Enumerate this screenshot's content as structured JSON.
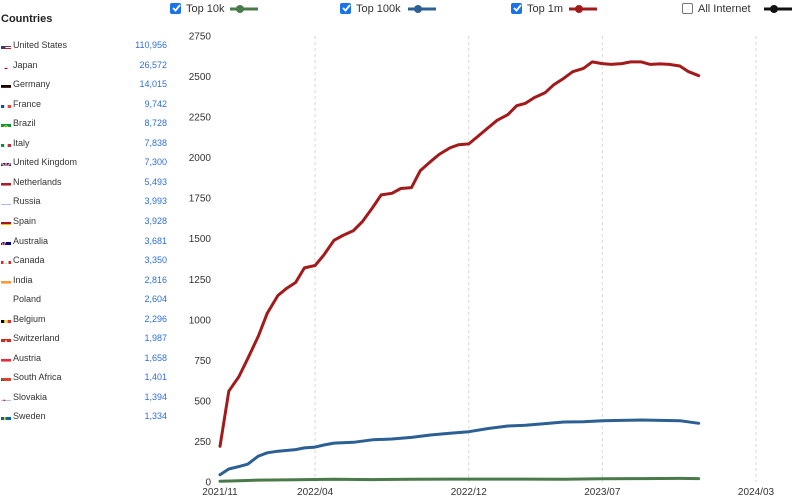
{
  "sidebar": {
    "title": "Countries",
    "countries": [
      {
        "name": "United States",
        "value": "110,956",
        "flag_icon": "us-flag-icon"
      },
      {
        "name": "Japan",
        "value": "26,572",
        "flag_icon": "japan-flag-icon"
      },
      {
        "name": "Germany",
        "value": "14,015",
        "flag_icon": "germany-flag-icon"
      },
      {
        "name": "France",
        "value": "9,742",
        "flag_icon": "france-flag-icon"
      },
      {
        "name": "Brazil",
        "value": "8,728",
        "flag_icon": "brazil-flag-icon"
      },
      {
        "name": "Italy",
        "value": "7,838",
        "flag_icon": "italy-flag-icon"
      },
      {
        "name": "United Kingdom",
        "value": "7,300",
        "flag_icon": "uk-flag-icon"
      },
      {
        "name": "Netherlands",
        "value": "5,493",
        "flag_icon": "netherlands-flag-icon"
      },
      {
        "name": "Russia",
        "value": "3,993",
        "flag_icon": "russia-flag-icon"
      },
      {
        "name": "Spain",
        "value": "3,928",
        "flag_icon": "spain-flag-icon"
      },
      {
        "name": "Australia",
        "value": "3,681",
        "flag_icon": "australia-flag-icon"
      },
      {
        "name": "Canada",
        "value": "3,350",
        "flag_icon": "canada-flag-icon"
      },
      {
        "name": "India",
        "value": "2,816",
        "flag_icon": "india-flag-icon"
      },
      {
        "name": "Poland",
        "value": "2,604",
        "flag_icon": "poland-flag-icon"
      },
      {
        "name": "Belgium",
        "value": "2,296",
        "flag_icon": "belgium-flag-icon"
      },
      {
        "name": "Switzerland",
        "value": "1,987",
        "flag_icon": "switzerland-flag-icon"
      },
      {
        "name": "Austria",
        "value": "1,658",
        "flag_icon": "austria-flag-icon"
      },
      {
        "name": "South Africa",
        "value": "1,401",
        "flag_icon": "south-africa-flag-icon"
      },
      {
        "name": "Slovakia",
        "value": "1,394",
        "flag_icon": "slovakia-flag-icon"
      },
      {
        "name": "Sweden",
        "value": "1,334",
        "flag_icon": "sweden-flag-icon"
      }
    ]
  },
  "legend": [
    {
      "label": "Top 10k",
      "checked": true,
      "color": "#4a7a4a"
    },
    {
      "label": "Top 100k",
      "checked": true,
      "color": "#2c5f94"
    },
    {
      "label": "Top 1m",
      "checked": true,
      "color": "#a31a1a"
    },
    {
      "label": "All Internet",
      "checked": false,
      "color": "#111111"
    }
  ],
  "chart_data": {
    "type": "line",
    "title": "",
    "xlabel": "",
    "ylabel": "",
    "ylim": [
      0,
      2750
    ],
    "yticks": [
      0,
      250,
      500,
      750,
      1000,
      1250,
      1500,
      1750,
      2000,
      2250,
      2500,
      2750
    ],
    "xlim": [
      "2021-11",
      "2024-03"
    ],
    "xticks": [
      "2021/11",
      "2022/04",
      "2022/12",
      "2023/07",
      "2024/03"
    ],
    "grid": "vertical dashed lines at x ticks",
    "series": [
      {
        "name": "Top 1m",
        "color": "#a31a1a",
        "points": [
          [
            "2021-11-01",
            220
          ],
          [
            "2021-11-15",
            560
          ],
          [
            "2021-12-01",
            650
          ],
          [
            "2021-12-15",
            760
          ],
          [
            "2022-01-01",
            900
          ],
          [
            "2022-01-15",
            1040
          ],
          [
            "2022-02-01",
            1150
          ],
          [
            "2022-02-15",
            1195
          ],
          [
            "2022-03-01",
            1230
          ],
          [
            "2022-03-15",
            1320
          ],
          [
            "2022-04-01",
            1335
          ],
          [
            "2022-04-15",
            1400
          ],
          [
            "2022-05-01",
            1490
          ],
          [
            "2022-05-15",
            1520
          ],
          [
            "2022-06-01",
            1550
          ],
          [
            "2022-06-15",
            1605
          ],
          [
            "2022-07-01",
            1690
          ],
          [
            "2022-07-15",
            1770
          ],
          [
            "2022-08-01",
            1780
          ],
          [
            "2022-08-15",
            1810
          ],
          [
            "2022-09-01",
            1815
          ],
          [
            "2022-09-15",
            1920
          ],
          [
            "2022-10-01",
            1975
          ],
          [
            "2022-10-15",
            2020
          ],
          [
            "2022-11-01",
            2060
          ],
          [
            "2022-11-15",
            2080
          ],
          [
            "2022-12-01",
            2085
          ],
          [
            "2022-12-15",
            2130
          ],
          [
            "2023-01-01",
            2185
          ],
          [
            "2023-01-15",
            2230
          ],
          [
            "2023-02-01",
            2265
          ],
          [
            "2023-02-15",
            2320
          ],
          [
            "2023-03-01",
            2335
          ],
          [
            "2023-03-15",
            2370
          ],
          [
            "2023-04-01",
            2400
          ],
          [
            "2023-04-15",
            2450
          ],
          [
            "2023-05-01",
            2490
          ],
          [
            "2023-05-15",
            2530
          ],
          [
            "2023-06-01",
            2550
          ],
          [
            "2023-06-15",
            2590
          ],
          [
            "2023-07-01",
            2580
          ],
          [
            "2023-07-15",
            2575
          ],
          [
            "2023-08-01",
            2580
          ],
          [
            "2023-08-15",
            2590
          ],
          [
            "2023-09-01",
            2590
          ],
          [
            "2023-09-15",
            2575
          ],
          [
            "2023-10-01",
            2578
          ],
          [
            "2023-10-15",
            2575
          ],
          [
            "2023-11-01",
            2565
          ],
          [
            "2023-11-15",
            2530
          ],
          [
            "2023-12-01",
            2505
          ]
        ]
      },
      {
        "name": "Top 100k",
        "color": "#2c5f94",
        "points": [
          [
            "2021-11-01",
            45
          ],
          [
            "2021-11-15",
            80
          ],
          [
            "2021-12-01",
            95
          ],
          [
            "2021-12-15",
            110
          ],
          [
            "2022-01-01",
            160
          ],
          [
            "2022-01-15",
            180
          ],
          [
            "2022-02-01",
            190
          ],
          [
            "2022-03-01",
            200
          ],
          [
            "2022-03-15",
            210
          ],
          [
            "2022-04-01",
            215
          ],
          [
            "2022-04-15",
            228
          ],
          [
            "2022-05-01",
            240
          ],
          [
            "2022-06-01",
            245
          ],
          [
            "2022-07-01",
            260
          ],
          [
            "2022-08-01",
            265
          ],
          [
            "2022-09-01",
            275
          ],
          [
            "2022-10-01",
            290
          ],
          [
            "2022-11-01",
            300
          ],
          [
            "2022-12-01",
            310
          ],
          [
            "2023-01-01",
            330
          ],
          [
            "2023-02-01",
            345
          ],
          [
            "2023-03-01",
            350
          ],
          [
            "2023-04-01",
            360
          ],
          [
            "2023-05-01",
            370
          ],
          [
            "2023-06-01",
            372
          ],
          [
            "2023-07-01",
            378
          ],
          [
            "2023-08-01",
            380
          ],
          [
            "2023-09-01",
            382
          ],
          [
            "2023-10-01",
            380
          ],
          [
            "2023-11-01",
            378
          ],
          [
            "2023-12-01",
            362
          ]
        ]
      },
      {
        "name": "Top 10k",
        "color": "#4a7a4a",
        "points": [
          [
            "2021-11-01",
            5
          ],
          [
            "2021-12-01",
            8
          ],
          [
            "2022-01-01",
            12
          ],
          [
            "2022-03-01",
            14
          ],
          [
            "2022-05-01",
            17
          ],
          [
            "2022-07-01",
            15
          ],
          [
            "2022-09-01",
            17
          ],
          [
            "2022-11-01",
            18
          ],
          [
            "2023-01-01",
            18
          ],
          [
            "2023-03-01",
            18
          ],
          [
            "2023-05-01",
            17
          ],
          [
            "2023-07-01",
            20
          ],
          [
            "2023-09-01",
            21
          ],
          [
            "2023-11-01",
            22
          ],
          [
            "2023-12-01",
            21
          ]
        ]
      }
    ]
  }
}
